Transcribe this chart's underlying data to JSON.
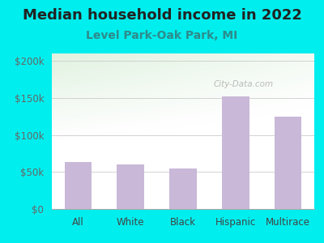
{
  "title": "Median household income in 2022",
  "subtitle": "Level Park-Oak Park, MI",
  "categories": [
    "All",
    "White",
    "Black",
    "Hispanic",
    "Multirace"
  ],
  "values": [
    63000,
    60000,
    55000,
    152000,
    125000
  ],
  "bar_color": "#c9b8d8",
  "background_color": "#00EEEE",
  "ylabel_ticks": [
    0,
    50000,
    100000,
    150000,
    200000
  ],
  "ylabel_labels": [
    "$0",
    "$50k",
    "$100k",
    "$150k",
    "$200k"
  ],
  "ylim": [
    0,
    210000
  ],
  "title_fontsize": 13,
  "subtitle_fontsize": 10,
  "tick_fontsize": 8.5,
  "title_color": "#222222",
  "subtitle_color": "#2e8b8b",
  "watermark": "City-Data.com",
  "watermark_color": "#b0b0b0",
  "tick_label_color": "#666666",
  "xtick_label_color": "#444444"
}
